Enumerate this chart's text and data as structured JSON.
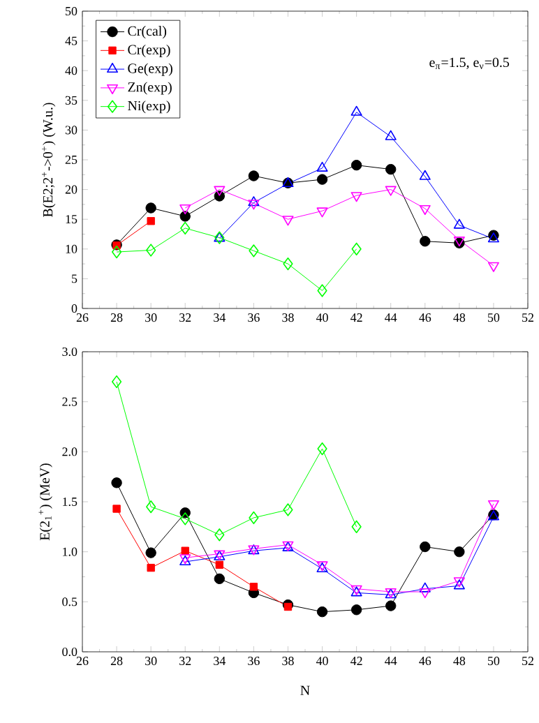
{
  "chart_data": [
    {
      "type": "line",
      "ylabel": "B(E2;2$^{+}$->0$^{+}$) (W.u.)",
      "annotations": [
        "e$_{π}$=1.5,  e$_{ν}$=0.5"
      ],
      "xlim": [
        26,
        52
      ],
      "xticks": [
        26,
        28,
        30,
        32,
        34,
        36,
        38,
        40,
        42,
        44,
        46,
        48,
        50,
        52
      ],
      "ylim": [
        0,
        50
      ],
      "yticks": [
        0,
        5,
        10,
        15,
        20,
        25,
        30,
        35,
        40,
        45,
        50
      ],
      "legend": "top left",
      "grid": false,
      "series": [
        {
          "name": "Cr(cal)",
          "color": "#000000",
          "marker": "circle",
          "x": [
            28,
            30,
            32,
            34,
            36,
            38,
            40,
            42,
            44,
            46,
            48,
            50
          ],
          "values": [
            10.7,
            16.9,
            15.5,
            18.9,
            22.3,
            21.1,
            21.7,
            24.1,
            23.4,
            11.3,
            11.0,
            12.3
          ]
        },
        {
          "name": "Cr(exp)",
          "color": "#ff0000",
          "marker": "square",
          "x": [
            28,
            30
          ],
          "values": [
            10.6,
            14.7
          ]
        },
        {
          "name": "Ge(exp)",
          "color": "#0000ff",
          "marker": "triangle",
          "x": [
            34,
            36,
            38,
            40,
            42,
            44,
            46,
            48,
            50
          ],
          "values": [
            11.8,
            17.8,
            21.0,
            23.6,
            33.0,
            28.9,
            22.2,
            14.0,
            11.7
          ]
        },
        {
          "name": "Zn(exp)",
          "color": "#ff00ff",
          "marker": "triangle-down",
          "x": [
            32,
            34,
            36,
            38,
            40,
            42,
            44,
            46,
            48,
            50
          ],
          "values": [
            16.9,
            20.0,
            17.7,
            15.0,
            16.4,
            19.0,
            20.0,
            16.8,
            11.5,
            7.2
          ]
        },
        {
          "name": "Ni(exp)",
          "color": "#00ff00",
          "marker": "diamond",
          "x": [
            28,
            30,
            32,
            34,
            36,
            38,
            40,
            42
          ],
          "values": [
            9.5,
            9.8,
            13.5,
            11.9,
            9.7,
            7.5,
            3.0,
            10.0
          ]
        }
      ]
    },
    {
      "type": "line",
      "xlabel": "N",
      "ylabel": "E(2$_{1}$$^{+}$) (MeV)",
      "xlim": [
        26,
        52
      ],
      "xticks": [
        26,
        28,
        30,
        32,
        34,
        36,
        38,
        40,
        42,
        44,
        46,
        48,
        50,
        52
      ],
      "ylim": [
        0,
        3
      ],
      "yticks": [
        {
          "value": 0,
          "label": "0.0"
        },
        {
          "value": 0.5,
          "label": "0.5"
        },
        {
          "value": 1,
          "label": "1.0"
        },
        {
          "value": 1.5,
          "label": "1.5"
        },
        {
          "value": 2,
          "label": "2.0"
        },
        {
          "value": 2.5,
          "label": "2.5"
        },
        {
          "value": 3,
          "label": "3.0"
        }
      ],
      "legend": false,
      "grid": false,
      "series": [
        {
          "color": "#000000",
          "marker": "circle",
          "x": [
            28,
            30,
            32,
            34,
            36,
            38,
            40,
            42,
            44,
            46,
            48,
            50
          ],
          "values": [
            1.69,
            0.99,
            1.39,
            0.73,
            0.59,
            0.47,
            0.4,
            0.42,
            0.46,
            1.05,
            1.0,
            1.37
          ]
        },
        {
          "color": "#ff0000",
          "marker": "square",
          "x": [
            28,
            30,
            32,
            34,
            36,
            38
          ],
          "values": [
            1.43,
            0.84,
            1.01,
            0.87,
            0.65,
            0.45
          ]
        },
        {
          "color": "#0000ff",
          "marker": "triangle",
          "x": [
            32,
            34,
            36,
            38,
            40,
            42,
            44,
            46,
            48,
            50
          ],
          "values": [
            0.9,
            0.95,
            1.01,
            1.04,
            0.83,
            0.59,
            0.57,
            0.63,
            0.66,
            1.35
          ]
        },
        {
          "color": "#ff00ff",
          "marker": "triangle-down",
          "x": [
            32,
            34,
            36,
            38,
            40,
            42,
            44,
            46,
            48,
            50
          ],
          "values": [
            0.94,
            0.98,
            1.03,
            1.07,
            0.87,
            0.63,
            0.6,
            0.6,
            0.71,
            1.48
          ]
        },
        {
          "color": "#00ff00",
          "marker": "diamond",
          "x": [
            28,
            30,
            32,
            34,
            36,
            38,
            40,
            42
          ],
          "values": [
            2.7,
            1.45,
            1.33,
            1.17,
            1.34,
            1.42,
            2.03,
            1.25
          ]
        }
      ]
    }
  ]
}
